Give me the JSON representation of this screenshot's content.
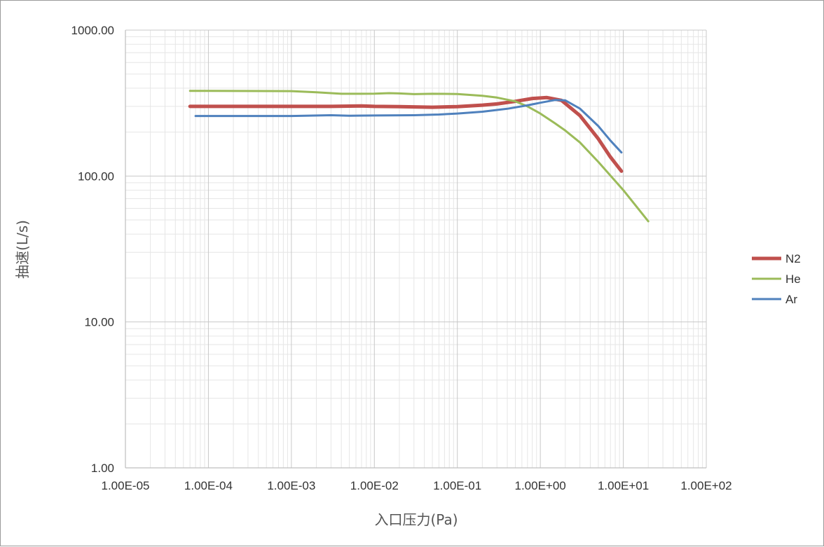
{
  "chart_data": {
    "type": "line",
    "title": "",
    "xlabel": "入口压力(Pa)",
    "ylabel": "抽速(L/s)",
    "x_scale": "log",
    "y_scale": "log",
    "xlim": [
      1e-05,
      100
    ],
    "ylim": [
      1,
      1000
    ],
    "x_ticks": [
      "1.00E-05",
      "1.00E-04",
      "1.00E-03",
      "1.00E-02",
      "1.00E-01",
      "1.00E+00",
      "1.00E+01",
      "1.00E+02"
    ],
    "y_ticks": [
      "1.00",
      "10.00",
      "100.00",
      "1000.00"
    ],
    "grid": true,
    "legend_position": "right",
    "series": [
      {
        "name": "N2",
        "color": "#c0504d",
        "points": [
          [
            6e-05,
            300
          ],
          [
            0.0001,
            300
          ],
          [
            0.001,
            300
          ],
          [
            0.003,
            300
          ],
          [
            0.007,
            302
          ],
          [
            0.01,
            300
          ],
          [
            0.02,
            299
          ],
          [
            0.05,
            296
          ],
          [
            0.1,
            299
          ],
          [
            0.2,
            306
          ],
          [
            0.3,
            312
          ],
          [
            0.5,
            325
          ],
          [
            0.8,
            340
          ],
          [
            1.2,
            345
          ],
          [
            1.8,
            330
          ],
          [
            3,
            260
          ],
          [
            5,
            180
          ],
          [
            7,
            135
          ],
          [
            9.5,
            108
          ]
        ]
      },
      {
        "name": "He",
        "color": "#9bbb59",
        "points": [
          [
            6e-05,
            383
          ],
          [
            0.0001,
            383
          ],
          [
            0.001,
            382
          ],
          [
            0.002,
            375
          ],
          [
            0.004,
            366
          ],
          [
            0.007,
            366
          ],
          [
            0.01,
            367
          ],
          [
            0.015,
            370
          ],
          [
            0.02,
            368
          ],
          [
            0.03,
            364
          ],
          [
            0.05,
            366
          ],
          [
            0.1,
            365
          ],
          [
            0.2,
            355
          ],
          [
            0.3,
            345
          ],
          [
            0.5,
            325
          ],
          [
            0.7,
            300
          ],
          [
            1,
            268
          ],
          [
            1.5,
            230
          ],
          [
            2,
            205
          ],
          [
            3,
            170
          ],
          [
            5,
            125
          ],
          [
            10,
            80
          ],
          [
            20,
            49
          ]
        ]
      },
      {
        "name": "Ar",
        "color": "#4f81bd",
        "points": [
          [
            7e-05,
            258
          ],
          [
            0.0001,
            258
          ],
          [
            0.001,
            258
          ],
          [
            0.003,
            261
          ],
          [
            0.005,
            259
          ],
          [
            0.01,
            260
          ],
          [
            0.03,
            261
          ],
          [
            0.06,
            264
          ],
          [
            0.1,
            268
          ],
          [
            0.2,
            276
          ],
          [
            0.4,
            289
          ],
          [
            0.7,
            305
          ],
          [
            1,
            318
          ],
          [
            1.5,
            332
          ],
          [
            2,
            330
          ],
          [
            3,
            290
          ],
          [
            5,
            220
          ],
          [
            7,
            175
          ],
          [
            9.5,
            145
          ]
        ]
      }
    ]
  }
}
